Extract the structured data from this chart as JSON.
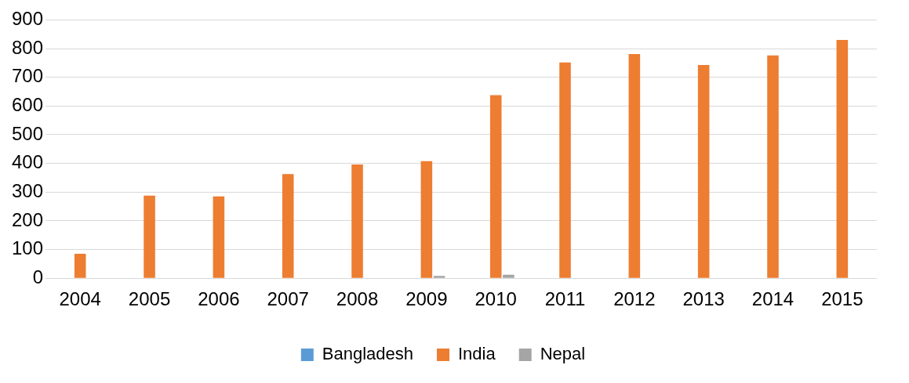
{
  "chart_data": {
    "type": "bar",
    "categories": [
      "2004",
      "2005",
      "2006",
      "2007",
      "2008",
      "2009",
      "2010",
      "2011",
      "2012",
      "2013",
      "2014",
      "2015"
    ],
    "series": [
      {
        "name": "Bangladesh",
        "color": "#5b9bd5",
        "values": [
          0,
          0,
          0,
          0,
          0,
          0,
          0,
          0,
          0,
          0,
          0,
          0
        ]
      },
      {
        "name": "India",
        "color": "#ed7d31",
        "values": [
          85,
          288,
          285,
          363,
          396,
          408,
          638,
          752,
          781,
          743,
          776,
          830
        ]
      },
      {
        "name": "Nepal",
        "color": "#a5a5a5",
        "values": [
          null,
          null,
          null,
          null,
          null,
          8,
          12,
          null,
          null,
          null,
          null,
          null
        ]
      }
    ],
    "ylim": [
      0,
      900
    ],
    "yticks": [
      0,
      100,
      200,
      300,
      400,
      500,
      600,
      700,
      800,
      900
    ],
    "grid": "y",
    "legend": "bottom"
  }
}
